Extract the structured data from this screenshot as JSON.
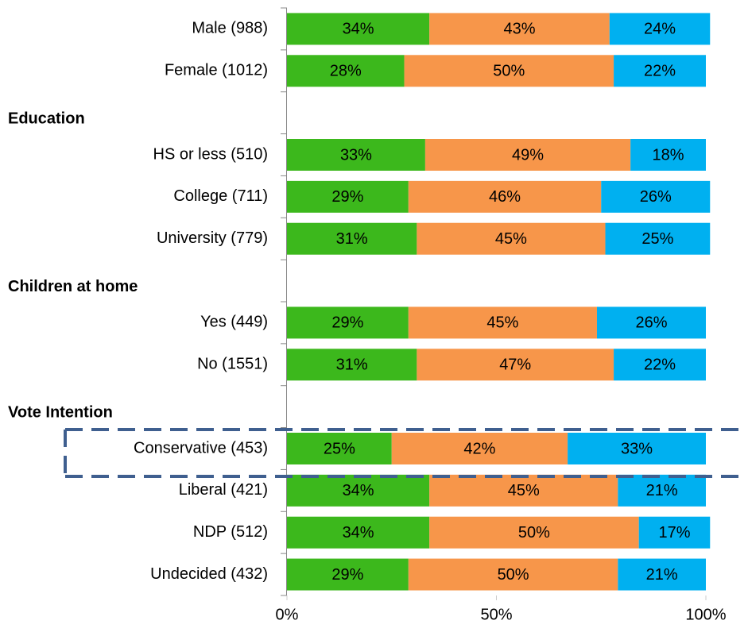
{
  "chart_data": {
    "type": "stacked_bar_h",
    "categories": [
      "Male (988)",
      "Female (1012)",
      null,
      "HS or less (510)",
      "College (711)",
      "University (779)",
      null,
      "Yes (449)",
      "No (1551)",
      null,
      "Conservative (453)",
      "Liberal (421)",
      "NDP (512)",
      "Undecided (432)"
    ],
    "group_titles": [
      "Education",
      "Children at home",
      "Vote Intention"
    ],
    "series": [
      {
        "color": "#3cb81c",
        "values": [
          34,
          28,
          null,
          33,
          29,
          31,
          null,
          29,
          31,
          null,
          25,
          34,
          34,
          29
        ],
        "value_labels": [
          "34%",
          "28%",
          null,
          "33%",
          "29%",
          "31%",
          null,
          "29%",
          "31%",
          null,
          "25%",
          "34%",
          "34%",
          "29%"
        ]
      },
      {
        "color": "#f7964a",
        "values": [
          43,
          50,
          null,
          49,
          46,
          45,
          null,
          45,
          47,
          null,
          42,
          45,
          50,
          50
        ],
        "value_labels": [
          "43%",
          "50%",
          null,
          "49%",
          "46%",
          "45%",
          null,
          "45%",
          "47%",
          null,
          "42%",
          "45%",
          "50%",
          "50%"
        ]
      },
      {
        "color": "#00b0f0",
        "values": [
          24,
          22,
          null,
          18,
          26,
          25,
          null,
          26,
          22,
          null,
          33,
          21,
          17,
          21
        ],
        "value_labels": [
          "24%",
          "22%",
          null,
          "18%",
          "26%",
          "25%",
          null,
          "26%",
          "22%",
          null,
          "33%",
          "21%",
          "17%",
          "21%"
        ]
      }
    ],
    "xlim": [
      0,
      100
    ],
    "xticks": [
      {
        "value": 0,
        "label": "0%"
      },
      {
        "value": 50,
        "label": "50%"
      },
      {
        "value": 100,
        "label": "100%"
      }
    ]
  }
}
